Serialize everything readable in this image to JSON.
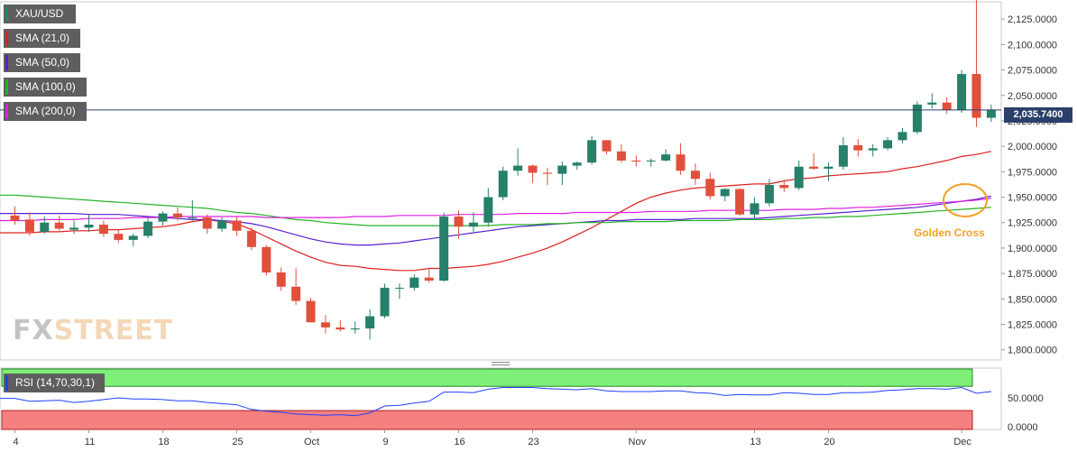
{
  "chart_data": {
    "type": "candlestick",
    "symbol": "XAU/USD",
    "indicators": [
      {
        "name": "SMA (21,0)",
        "color": "#e02020"
      },
      {
        "name": "SMA (50,0)",
        "color": "#5a1fd0"
      },
      {
        "name": "SMA (100,0)",
        "color": "#26b226"
      },
      {
        "name": "SMA (200,0)",
        "color": "#e020e0"
      }
    ],
    "rsi_label": "RSI (14,70,30,1)",
    "rsi_color": "#2040ff",
    "up_color": "#26806a",
    "down_color": "#e0503c",
    "last_price": 2035.74,
    "last_price_label": "2,035.7400",
    "annotation": "Golden Cross",
    "annotation_color": "#f4a223",
    "price_axis": {
      "range": [
        1790,
        2142
      ],
      "ticks": [
        1800,
        1825,
        1850,
        1875,
        1900,
        1925,
        1950,
        1975,
        2000,
        2025,
        2050,
        2075,
        2100,
        2125
      ],
      "tick_labels": [
        "1,800.0000",
        "1,825.0000",
        "1,850.0000",
        "1,875.0000",
        "1,900.0000",
        "1,925.0000",
        "1,950.0000",
        "1,975.0000",
        "2,000.0000",
        "2,025.0000",
        "2,050.0000",
        "2,075.0000",
        "2,100.0000",
        "2,125.0000"
      ]
    },
    "rsi_axis": {
      "range": [
        0,
        100
      ],
      "ticks": [
        0,
        50
      ],
      "tick_labels": [
        "0.0000",
        "50.0000"
      ],
      "overbought": 70,
      "oversold": 30
    },
    "x_labels": [
      {
        "label": "4",
        "index": 0
      },
      {
        "label": "11",
        "index": 5
      },
      {
        "label": "18",
        "index": 10
      },
      {
        "label": "25",
        "index": 15
      },
      {
        "label": "Oct",
        "index": 20
      },
      {
        "label": "9",
        "index": 25
      },
      {
        "label": "16",
        "index": 30
      },
      {
        "label": "23",
        "index": 35
      },
      {
        "label": "Nov",
        "index": 42
      },
      {
        "label": "13",
        "index": 50
      },
      {
        "label": "20",
        "index": 55
      },
      {
        "label": "Dec",
        "index": 64
      }
    ],
    "candles": [
      [
        1932,
        1941,
        1923,
        1927
      ],
      [
        1928,
        1935,
        1912,
        1916
      ],
      [
        1916,
        1931,
        1914,
        1925
      ],
      [
        1925,
        1932,
        1917,
        1919
      ],
      [
        1918,
        1927,
        1914,
        1920
      ],
      [
        1920,
        1933,
        1916,
        1923
      ],
      [
        1923,
        1927,
        1911,
        1914
      ],
      [
        1914,
        1918,
        1905,
        1908
      ],
      [
        1908,
        1914,
        1902,
        1912
      ],
      [
        1912,
        1930,
        1910,
        1926
      ],
      [
        1926,
        1936,
        1922,
        1934
      ],
      [
        1934,
        1940,
        1927,
        1930
      ],
      [
        1930,
        1947,
        1927,
        1930
      ],
      [
        1930,
        1933,
        1914,
        1919
      ],
      [
        1919,
        1930,
        1916,
        1927
      ],
      [
        1927,
        1931,
        1912,
        1917
      ],
      [
        1917,
        1920,
        1898,
        1901
      ],
      [
        1901,
        1903,
        1873,
        1876
      ],
      [
        1876,
        1881,
        1858,
        1862
      ],
      [
        1862,
        1880,
        1844,
        1848
      ],
      [
        1848,
        1851,
        1827,
        1827
      ],
      [
        1827,
        1834,
        1816,
        1822
      ],
      [
        1822,
        1829,
        1818,
        1820
      ],
      [
        1820,
        1828,
        1816,
        1821
      ],
      [
        1821,
        1840,
        1810,
        1833
      ],
      [
        1833,
        1865,
        1831,
        1861
      ],
      [
        1861,
        1865,
        1850,
        1861
      ],
      [
        1861,
        1874,
        1858,
        1871
      ],
      [
        1871,
        1879,
        1866,
        1868
      ],
      [
        1868,
        1935,
        1867,
        1931
      ],
      [
        1931,
        1937,
        1909,
        1921
      ],
      [
        1921,
        1935,
        1916,
        1925
      ],
      [
        1925,
        1959,
        1921,
        1950
      ],
      [
        1950,
        1980,
        1947,
        1976
      ],
      [
        1976,
        1998,
        1971,
        1981
      ],
      [
        1981,
        1982,
        1964,
        1974
      ],
      [
        1974,
        1979,
        1962,
        1973
      ],
      [
        1973,
        1985,
        1962,
        1981
      ],
      [
        1981,
        1985,
        1977,
        1984
      ],
      [
        1984,
        2010,
        1982,
        2006
      ],
      [
        2006,
        2006,
        1992,
        1995
      ],
      [
        1995,
        2002,
        1984,
        1986
      ],
      [
        1986,
        1991,
        1980,
        1985
      ],
      [
        1985,
        1988,
        1980,
        1986
      ],
      [
        1986,
        1997,
        1985,
        1992
      ],
      [
        1992,
        2003,
        1972,
        1976
      ],
      [
        1976,
        1983,
        1962,
        1968
      ],
      [
        1968,
        1974,
        1948,
        1951
      ],
      [
        1951,
        1959,
        1946,
        1958
      ],
      [
        1958,
        1959,
        1932,
        1933
      ],
      [
        1933,
        1950,
        1929,
        1944
      ],
      [
        1944,
        1968,
        1941,
        1962
      ],
      [
        1962,
        1967,
        1955,
        1959
      ],
      [
        1959,
        1986,
        1957,
        1980
      ],
      [
        1980,
        1993,
        1977,
        1978
      ],
      [
        1978,
        1984,
        1966,
        1980
      ],
      [
        1980,
        2009,
        1977,
        2001
      ],
      [
        2001,
        2007,
        1990,
        1996
      ],
      [
        1996,
        2002,
        1990,
        1998
      ],
      [
        1998,
        2009,
        1996,
        2006
      ],
      [
        2006,
        2018,
        2003,
        2014
      ],
      [
        2014,
        2044,
        2012,
        2041
      ],
      [
        2041,
        2052,
        2037,
        2043
      ],
      [
        2043,
        2048,
        2032,
        2036
      ],
      [
        2036,
        2075,
        2033,
        2071
      ],
      [
        2071,
        2147,
        2019,
        2028
      ],
      [
        2028,
        2041,
        2024,
        2036
      ]
    ],
    "sma_21": [
      1915,
      1915,
      1916,
      1916,
      1917,
      1917,
      1918,
      1918,
      1919,
      1920,
      1921,
      1923,
      1926,
      1928,
      1926,
      1924,
      1918,
      1911,
      1904,
      1897,
      1891,
      1886,
      1883,
      1882,
      1880,
      1879,
      1878,
      1878,
      1880,
      1880,
      1881,
      1882,
      1884,
      1887,
      1891,
      1895,
      1900,
      1906,
      1913,
      1920,
      1928,
      1936,
      1944,
      1950,
      1954,
      1957,
      1959,
      1960,
      1961,
      1962,
      1963,
      1963,
      1966,
      1968,
      1969,
      1971,
      1972,
      1973,
      1974,
      1975,
      1978,
      1980,
      1983,
      1986,
      1990,
      1992,
      1995
    ],
    "sma_50": [
      1934,
      1934,
      1934,
      1934,
      1934,
      1933,
      1933,
      1933,
      1932,
      1931,
      1930,
      1929,
      1928,
      1928,
      1927,
      1926,
      1924,
      1921,
      1917,
      1913,
      1909,
      1906,
      1904,
      1903,
      1903,
      1904,
      1905,
      1907,
      1909,
      1911,
      1913,
      1915,
      1917,
      1919,
      1921,
      1922,
      1923,
      1924,
      1925,
      1926,
      1927,
      1927,
      1928,
      1928,
      1928,
      1928,
      1929,
      1929,
      1929,
      1929,
      1929,
      1930,
      1931,
      1932,
      1933,
      1934,
      1935,
      1936,
      1937,
      1938,
      1939,
      1940,
      1942,
      1944,
      1946,
      1948,
      1951
    ],
    "sma_100": [
      1952,
      1951,
      1950,
      1949,
      1948,
      1947,
      1946,
      1945,
      1944,
      1943,
      1942,
      1941,
      1940,
      1939,
      1937,
      1935,
      1934,
      1932,
      1930,
      1928,
      1927,
      1925,
      1924,
      1923,
      1922,
      1922,
      1922,
      1922,
      1922,
      1922,
      1922,
      1922,
      1922,
      1923,
      1923,
      1923,
      1924,
      1924,
      1925,
      1925,
      1925,
      1926,
      1926,
      1926,
      1926,
      1927,
      1927,
      1927,
      1927,
      1928,
      1928,
      1928,
      1929,
      1929,
      1930,
      1930,
      1931,
      1931,
      1932,
      1933,
      1934,
      1935,
      1936,
      1937,
      1938,
      1939,
      1940
    ],
    "sma_200": [
      1927,
      1927,
      1928,
      1928,
      1928,
      1929,
      1929,
      1929,
      1930,
      1930,
      1930,
      1931,
      1931,
      1931,
      1931,
      1931,
      1931,
      1930,
      1930,
      1930,
      1930,
      1930,
      1930,
      1931,
      1931,
      1931,
      1932,
      1932,
      1932,
      1932,
      1933,
      1933,
      1933,
      1933,
      1934,
      1934,
      1934,
      1934,
      1935,
      1935,
      1935,
      1935,
      1935,
      1936,
      1936,
      1936,
      1936,
      1937,
      1937,
      1937,
      1937,
      1937,
      1938,
      1938,
      1938,
      1939,
      1939,
      1940,
      1940,
      1941,
      1942,
      1943,
      1944,
      1945,
      1946,
      1947,
      1949
    ],
    "rsi": [
      49,
      44,
      45,
      46,
      42,
      44,
      47,
      50,
      48,
      48,
      47,
      45,
      45,
      42,
      40,
      38,
      30,
      27,
      25,
      22,
      21,
      20,
      21,
      19,
      24,
      36,
      37,
      41,
      44,
      60,
      60,
      59,
      65,
      68,
      68,
      68,
      66,
      65,
      64,
      66,
      62,
      61,
      61,
      61,
      62,
      62,
      59,
      58,
      54,
      56,
      55,
      55,
      59,
      58,
      56,
      56,
      59,
      59,
      60,
      63,
      64,
      66,
      66,
      65,
      68,
      58,
      61
    ]
  },
  "watermark": {
    "part1": "FX",
    "part2": "STREET"
  }
}
